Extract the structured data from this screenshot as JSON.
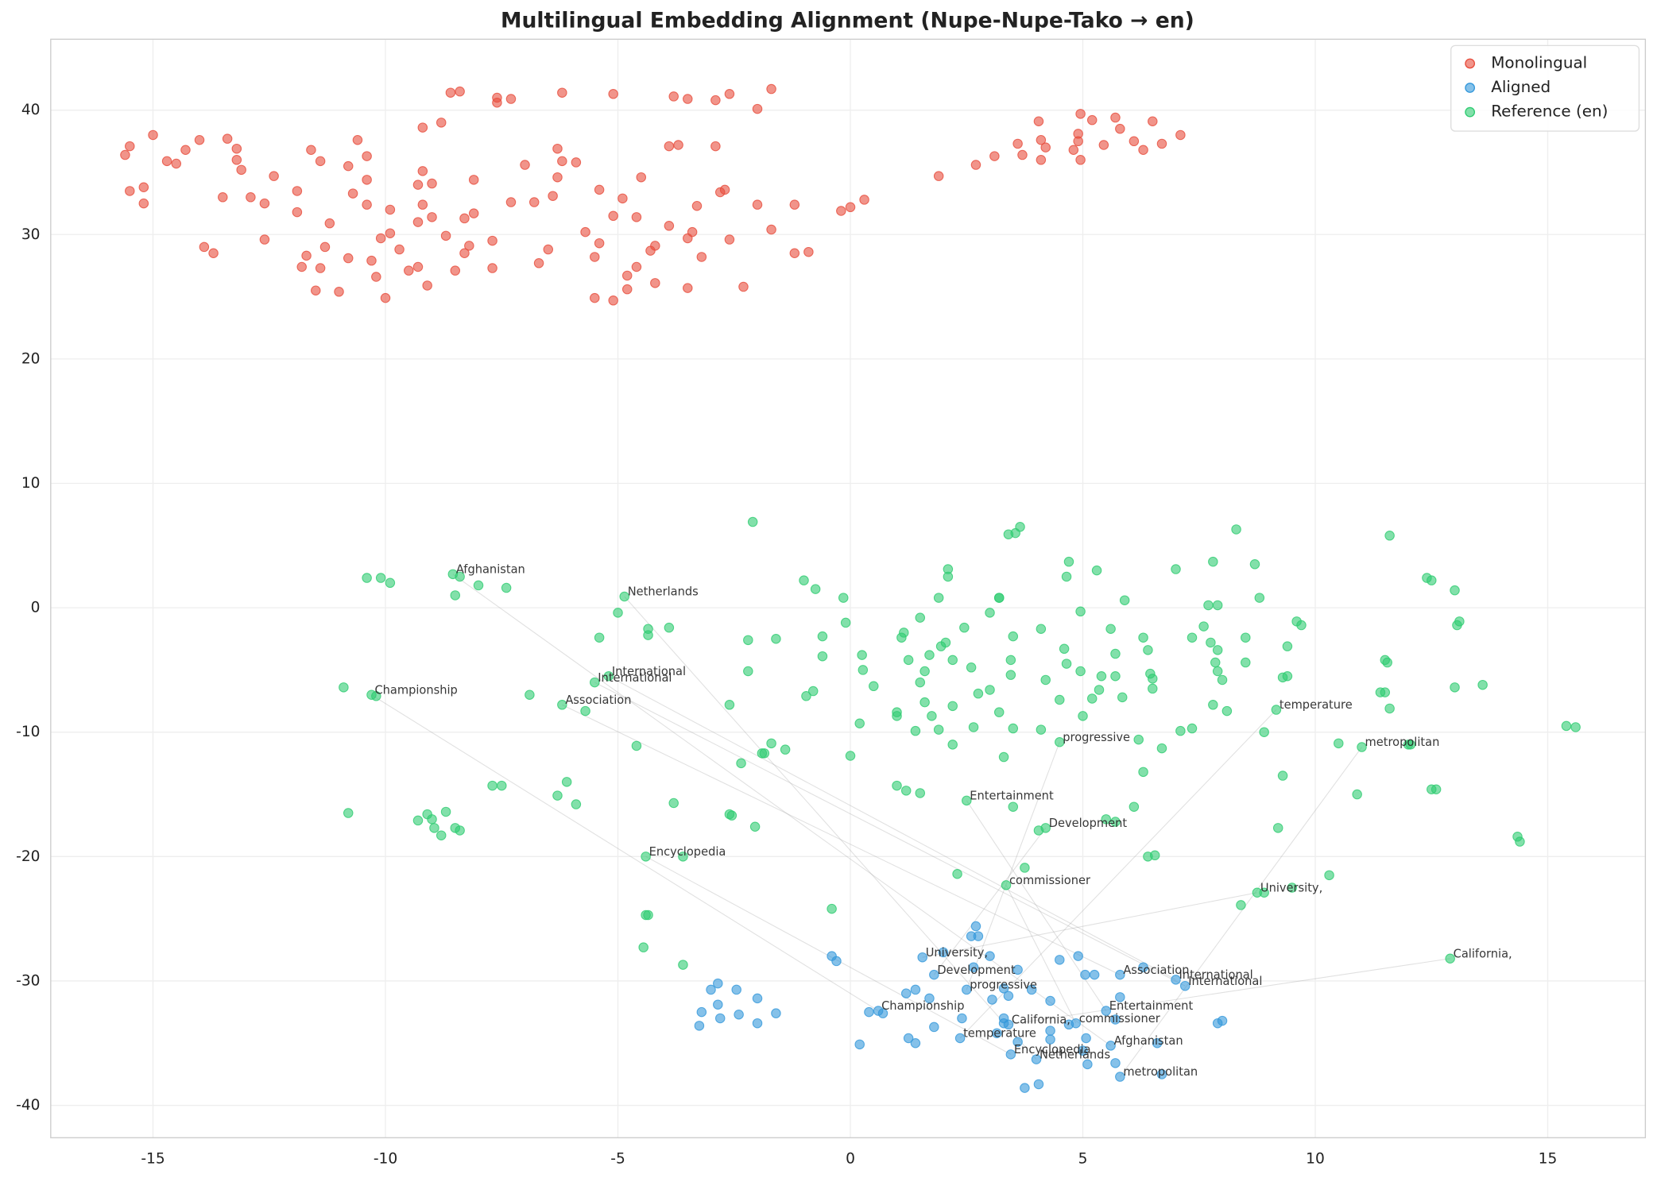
{
  "chart_data": {
    "type": "scatter",
    "title": "Multilingual Embedding Alignment (Nupe-Nupe-Tako → en)",
    "xlim": [
      -17.2,
      17.1
    ],
    "ylim": [
      -42.6,
      45.7
    ],
    "xticks": [
      -15,
      -10,
      -5,
      0,
      5,
      10,
      15
    ],
    "yticks": [
      -40,
      -30,
      -20,
      -10,
      0,
      10,
      20,
      30,
      40
    ],
    "grid": true,
    "legend": "upper right",
    "connect_annotations": true,
    "series": [
      {
        "name": "Monolingual",
        "color": "#e74c3c",
        "x": [
          -15.6,
          -15.5,
          -15.5,
          -15.2,
          -15.2,
          -15.0,
          -14.7,
          -14.5,
          -14.3,
          -14.0,
          -13.9,
          -13.7,
          -13.5,
          -13.4,
          -13.2,
          -13.2,
          -13.1,
          -12.9,
          -12.6,
          -12.6,
          -12.4,
          -11.9,
          -11.9,
          -11.8,
          -11.7,
          -11.6,
          -11.5,
          -11.4,
          -11.4,
          -11.3,
          -11.2,
          -11.0,
          -10.8,
          -10.8,
          -10.7,
          -10.6,
          -10.4,
          -10.4,
          -10.4,
          -10.3,
          -10.2,
          -10.1,
          -10.0,
          -9.9,
          -9.9,
          -9.7,
          -9.5,
          -9.3,
          -9.3,
          -9.3,
          -9.2,
          -9.2,
          -9.2,
          -9.1,
          -9.0,
          -9.0,
          -8.8,
          -8.7,
          -8.6,
          -8.5,
          -8.4,
          -8.3,
          -8.3,
          -8.2,
          -8.1,
          -8.1,
          -7.7,
          -7.7,
          -7.6,
          -7.6,
          -7.3,
          -7.3,
          -7.0,
          -6.8,
          -6.7,
          -6.5,
          -6.4,
          -6.3,
          -6.3,
          -6.2,
          -6.2,
          -5.9,
          -5.7,
          -5.5,
          -5.5,
          -5.4,
          -5.4,
          -5.1,
          -5.1,
          -5.1,
          -4.9,
          -4.8,
          -4.8,
          -4.6,
          -4.6,
          -4.5,
          -4.3,
          -4.2,
          -4.2,
          -3.9,
          -3.8,
          -3.9,
          -3.7,
          -3.5,
          -3.5,
          -3.5,
          -3.4,
          -3.3,
          -3.2,
          -2.9,
          -2.9,
          -2.8,
          -2.7,
          -2.6,
          -2.6,
          -2.3,
          -2.0,
          -2.0,
          -1.7,
          -1.7,
          -1.2,
          -1.2,
          -0.9,
          -0.2,
          0.0,
          0.3,
          1.9,
          2.7,
          3.1,
          3.6,
          3.7,
          4.05,
          4.1,
          4.1,
          4.2,
          4.8,
          4.95,
          4.9,
          4.9,
          4.95,
          5.2,
          5.45,
          5.7,
          5.8,
          6.1,
          6.3,
          6.5,
          6.7,
          7.1
        ],
        "y": [
          36.4,
          37.1,
          33.5,
          33.8,
          32.5,
          38.0,
          35.9,
          35.7,
          36.8,
          37.6,
          29.0,
          28.5,
          33.0,
          37.7,
          36.9,
          36.0,
          35.2,
          33.0,
          32.5,
          29.6,
          34.7,
          33.5,
          31.8,
          27.4,
          28.3,
          36.8,
          25.5,
          27.3,
          35.9,
          29.0,
          30.9,
          25.4,
          28.1,
          35.5,
          33.3,
          37.6,
          34.4,
          36.3,
          32.4,
          27.9,
          26.6,
          29.7,
          24.9,
          32.0,
          30.1,
          28.8,
          27.1,
          27.4,
          34.0,
          31.0,
          32.4,
          38.6,
          35.1,
          25.9,
          34.1,
          31.4,
          39.0,
          29.9,
          41.4,
          27.1,
          41.5,
          31.3,
          28.5,
          29.1,
          31.7,
          34.4,
          29.5,
          27.3,
          41.0,
          40.6,
          40.9,
          32.6,
          35.6,
          32.6,
          27.7,
          28.8,
          33.1,
          36.9,
          34.6,
          35.9,
          41.4,
          35.8,
          30.2,
          24.9,
          28.2,
          29.3,
          33.6,
          31.5,
          41.3,
          24.7,
          32.9,
          26.7,
          25.6,
          31.4,
          27.4,
          34.6,
          28.7,
          29.1,
          26.1,
          37.1,
          41.1,
          30.7,
          37.2,
          29.7,
          40.9,
          25.7,
          30.2,
          32.3,
          28.2,
          37.1,
          40.8,
          33.4,
          33.6,
          29.6,
          41.3,
          25.8,
          32.4,
          40.1,
          30.4,
          41.7,
          32.4,
          28.5,
          28.6,
          31.9,
          32.2,
          32.8,
          34.7,
          35.6,
          36.3,
          37.3,
          36.4,
          39.1,
          37.6,
          36.0,
          37.0,
          36.8,
          39.7,
          38.1,
          37.5,
          36.0,
          39.2,
          37.2,
          39.4,
          38.5,
          37.5,
          36.8,
          39.1,
          37.3,
          38.0
        ]
      },
      {
        "name": "Aligned",
        "color": "#3498db",
        "x": [
          5.6,
          4.0,
          0.6,
          7.0,
          7.2,
          5.8,
          2.36,
          5.8,
          2.5,
          5.5,
          1.8,
          3.45,
          4.85,
          1.55,
          3.4,
          -3.0,
          -2.85,
          -2.45,
          -3.2,
          -3.25,
          -2.85,
          -2.8,
          -2.4,
          -2.0,
          -2.0,
          -1.6,
          -0.4,
          -0.3,
          0.4,
          0.7,
          0.2,
          1.2,
          1.4,
          1.25,
          1.4,
          1.7,
          1.8,
          2.0,
          2.6,
          2.75,
          2.7,
          2.65,
          2.4,
          3.0,
          3.05,
          3.15,
          3.3,
          3.4,
          3.6,
          3.6,
          3.3,
          3.3,
          3.9,
          3.75,
          4.05,
          4.3,
          4.3,
          4.3,
          4.5,
          4.9,
          5.05,
          5.25,
          5.07,
          5.0,
          5.1,
          4.7,
          5.7,
          5.7,
          5.8,
          6.3,
          6.6,
          6.7,
          7.9,
          8.0
        ],
        "y": [
          -35.2,
          -36.3,
          -32.4,
          -29.9,
          -30.4,
          -29.5,
          -34.6,
          -37.7,
          -30.7,
          -32.4,
          -29.5,
          -35.9,
          -33.4,
          -28.1,
          -33.5,
          -30.7,
          -30.2,
          -30.7,
          -32.5,
          -33.6,
          -31.9,
          -33.0,
          -32.7,
          -31.4,
          -33.4,
          -32.6,
          -28.0,
          -28.4,
          -32.5,
          -32.6,
          -35.1,
          -31.0,
          -30.7,
          -34.6,
          -35.0,
          -31.4,
          -33.7,
          -27.7,
          -26.4,
          -26.4,
          -25.6,
          -28.9,
          -33.0,
          -28.0,
          -31.5,
          -34.2,
          -33.0,
          -31.2,
          -29.1,
          -34.9,
          -33.4,
          -30.6,
          -30.7,
          -38.6,
          -38.3,
          -31.6,
          -34.0,
          -34.7,
          -28.3,
          -28.0,
          -29.5,
          -29.5,
          -34.6,
          -35.6,
          -36.7,
          -33.5,
          -36.6,
          -33.1,
          -31.3,
          -28.9,
          -35.0,
          -37.5,
          -33.4,
          -33.2
        ],
        "annotations": [
          {
            "text": "Afghanistan",
            "x": 5.6,
            "y": -35.2
          },
          {
            "text": "Netherlands",
            "x": 4.0,
            "y": -36.3
          },
          {
            "text": "Championship",
            "x": 0.6,
            "y": -32.4
          },
          {
            "text": "International",
            "x": 7.0,
            "y": -29.9
          },
          {
            "text": "International",
            "x": 7.2,
            "y": -30.4
          },
          {
            "text": "Association",
            "x": 5.8,
            "y": -29.5
          },
          {
            "text": "temperature",
            "x": 2.36,
            "y": -34.6
          },
          {
            "text": "metropolitan",
            "x": 5.8,
            "y": -37.7
          },
          {
            "text": "progressive",
            "x": 2.5,
            "y": -30.7
          },
          {
            "text": "Entertainment",
            "x": 5.5,
            "y": -32.4
          },
          {
            "text": "Development",
            "x": 1.8,
            "y": -29.5
          },
          {
            "text": "Encyclopedia",
            "x": 3.45,
            "y": -35.9
          },
          {
            "text": "commissioner",
            "x": 4.85,
            "y": -33.4
          },
          {
            "text": "University,",
            "x": 1.55,
            "y": -28.1
          },
          {
            "text": "California,",
            "x": 3.4,
            "y": -33.5
          }
        ]
      },
      {
        "name": "Reference (en)",
        "color": "#2ecc71",
        "x": [
          -8.55,
          -4.86,
          -10.3,
          -5.2,
          -5.5,
          -6.2,
          9.16,
          11.0,
          4.5,
          2.5,
          4.2,
          -4.4,
          3.35,
          8.75,
          12.9,
          -2.1,
          8.3,
          11.6,
          3.65,
          3.4,
          3.55,
          2.1,
          2.1,
          4.7,
          5.3,
          4.65,
          7.0,
          7.8,
          8.7,
          12.4,
          12.5,
          13.0,
          -10.4,
          -10.1,
          -9.9,
          -8.4,
          -8.0,
          -7.4,
          -8.5,
          -1.0,
          -0.75,
          -0.15,
          1.9,
          3.2,
          3.2,
          5.9,
          8.8,
          -5.0,
          -3.9,
          -4.35,
          -4.35,
          -5.4,
          -2.2,
          -1.6,
          -0.6,
          -0.1,
          1.5,
          3.0,
          4.95,
          2.45,
          3.5,
          4.1,
          5.6,
          1.15,
          1.1,
          1.95,
          2.05,
          7.7,
          7.9,
          7.6,
          7.35,
          7.75,
          7.9,
          8.5,
          9.4,
          9.6,
          9.7,
          13.1,
          13.05,
          6.3,
          6.4,
          4.6,
          5.7,
          -0.6,
          0.25,
          1.7,
          1.25,
          2.2,
          2.6,
          3.45,
          4.65,
          7.85,
          8.5,
          11.5,
          11.55,
          -2.2,
          0.27,
          1.6,
          3.45,
          4.2,
          4.95,
          5.4,
          5.7,
          6.45,
          6.5,
          6.5,
          7.9,
          8.0,
          9.3,
          9.4,
          11.4,
          11.5,
          13.0,
          13.6,
          -10.9,
          -10.2,
          -6.9,
          1.5,
          0.5,
          3.0,
          2.75,
          5.35,
          5.2,
          5.85,
          -0.95,
          -0.8,
          -2.6,
          1.6,
          2.2,
          4.5,
          7.8,
          8.1,
          11.6,
          -5.7,
          1.0,
          1.0,
          1.75,
          3.2,
          5.0,
          0.2,
          1.9,
          2.65,
          3.5,
          4.1,
          1.4,
          7.1,
          7.35,
          8.9,
          15.4,
          15.6,
          6.2,
          10.5,
          6.7,
          -4.6,
          2.2,
          -1.4,
          -1.9,
          -1.85,
          -1.7,
          0.0,
          12.0,
          12.05,
          -2.35,
          3.3,
          6.3,
          9.3,
          1.0,
          1.2,
          1.5,
          12.5,
          12.6,
          10.9,
          -7.7,
          -7.5,
          -6.1,
          -6.3,
          -5.9,
          -3.8,
          6.1,
          3.5,
          -10.8,
          -9.1,
          -8.7,
          -9.3,
          -9.0,
          -2.6,
          -2.55,
          5.5,
          5.7,
          -8.95,
          -8.8,
          -8.5,
          -8.4,
          -2.05,
          4.05,
          9.2,
          14.35,
          14.4,
          -3.6,
          6.4,
          6.55,
          3.75,
          10.3,
          2.3,
          9.5,
          8.4,
          8.9,
          -0.4,
          -4.4,
          -4.35,
          -4.45,
          -3.6
        ],
        "y": [
          2.7,
          0.9,
          -7.0,
          -5.5,
          -6.0,
          -7.8,
          -8.2,
          -11.2,
          -10.8,
          -15.5,
          -17.7,
          -20.0,
          -22.3,
          -22.9,
          -28.2,
          6.9,
          6.3,
          5.8,
          6.5,
          5.9,
          6.0,
          3.1,
          2.5,
          3.7,
          3.0,
          2.5,
          3.1,
          3.7,
          3.5,
          2.4,
          2.2,
          1.4,
          2.4,
          2.4,
          2.0,
          2.5,
          1.8,
          1.6,
          1.0,
          2.2,
          1.5,
          0.8,
          0.8,
          0.8,
          0.8,
          0.6,
          0.8,
          -0.4,
          -1.6,
          -1.7,
          -2.2,
          -2.4,
          -2.6,
          -2.5,
          -2.3,
          -1.2,
          -0.8,
          -0.4,
          -0.3,
          -1.6,
          -2.3,
          -1.7,
          -1.7,
          -2.0,
          -2.4,
          -3.1,
          -2.8,
          0.2,
          0.2,
          -1.5,
          -2.4,
          -2.8,
          -3.4,
          -2.4,
          -3.1,
          -1.1,
          -1.4,
          -1.1,
          -1.4,
          -2.4,
          -3.4,
          -3.3,
          -3.7,
          -3.9,
          -3.8,
          -3.8,
          -4.2,
          -4.2,
          -4.8,
          -4.2,
          -4.5,
          -4.4,
          -4.4,
          -4.2,
          -4.4,
          -5.1,
          -5.0,
          -5.1,
          -5.4,
          -5.8,
          -5.1,
          -5.5,
          -5.5,
          -5.3,
          -5.7,
          -6.5,
          -5.1,
          -5.8,
          -5.6,
          -5.5,
          -6.8,
          -6.8,
          -6.4,
          -6.2,
          -6.4,
          -7.1,
          -7.0,
          -6.0,
          -6.3,
          -6.6,
          -6.9,
          -6.6,
          -7.3,
          -7.2,
          -7.1,
          -6.7,
          -7.8,
          -7.6,
          -7.9,
          -7.4,
          -7.8,
          -8.3,
          -8.1,
          -8.3,
          -8.4,
          -8.7,
          -8.7,
          -8.4,
          -8.7,
          -9.3,
          -9.8,
          -9.6,
          -9.7,
          -9.8,
          -9.9,
          -9.9,
          -9.7,
          -10.0,
          -9.5,
          -9.6,
          -10.6,
          -10.9,
          -11.3,
          -11.1,
          -11.0,
          -11.4,
          -11.7,
          -11.7,
          -10.9,
          -11.9,
          -11.0,
          -11.0,
          -12.5,
          -12.0,
          -13.2,
          -13.5,
          -14.3,
          -14.7,
          -14.9,
          -14.6,
          -14.6,
          -15.0,
          -14.3,
          -14.3,
          -14.0,
          -15.1,
          -15.8,
          -15.7,
          -16.0,
          -16.0,
          -16.5,
          -16.6,
          -16.4,
          -17.1,
          -17.0,
          -16.6,
          -16.7,
          -17.0,
          -17.2,
          -17.7,
          -18.3,
          -17.7,
          -17.9,
          -17.6,
          -17.9,
          -17.7,
          -18.4,
          -18.8,
          -20.0,
          -20.0,
          -19.9,
          -20.9,
          -21.5,
          -21.4,
          -22.5,
          -23.9,
          -22.9,
          -24.2,
          -24.7,
          -24.7,
          -27.3,
          -28.7
        ],
        "annotations": [
          {
            "text": "Afghanistan",
            "x": -8.55,
            "y": 2.7
          },
          {
            "text": "Netherlands",
            "x": -4.86,
            "y": 0.9
          },
          {
            "text": "Championship",
            "x": -10.3,
            "y": -7.0
          },
          {
            "text": "International",
            "x": -5.2,
            "y": -5.5
          },
          {
            "text": "International",
            "x": -5.5,
            "y": -6.0
          },
          {
            "text": "Association",
            "x": -6.2,
            "y": -7.8
          },
          {
            "text": "temperature",
            "x": 9.16,
            "y": -8.2
          },
          {
            "text": "metropolitan",
            "x": 11.0,
            "y": -11.2
          },
          {
            "text": "progressive",
            "x": 4.5,
            "y": -10.8
          },
          {
            "text": "Entertainment",
            "x": 2.5,
            "y": -15.5
          },
          {
            "text": "Development",
            "x": 4.2,
            "y": -17.7
          },
          {
            "text": "Encyclopedia",
            "x": -4.4,
            "y": -20.0
          },
          {
            "text": "commissioner",
            "x": 3.35,
            "y": -22.3
          },
          {
            "text": "University,",
            "x": 8.75,
            "y": -22.9
          },
          {
            "text": "California,",
            "x": 12.9,
            "y": -28.2
          }
        ]
      }
    ]
  }
}
